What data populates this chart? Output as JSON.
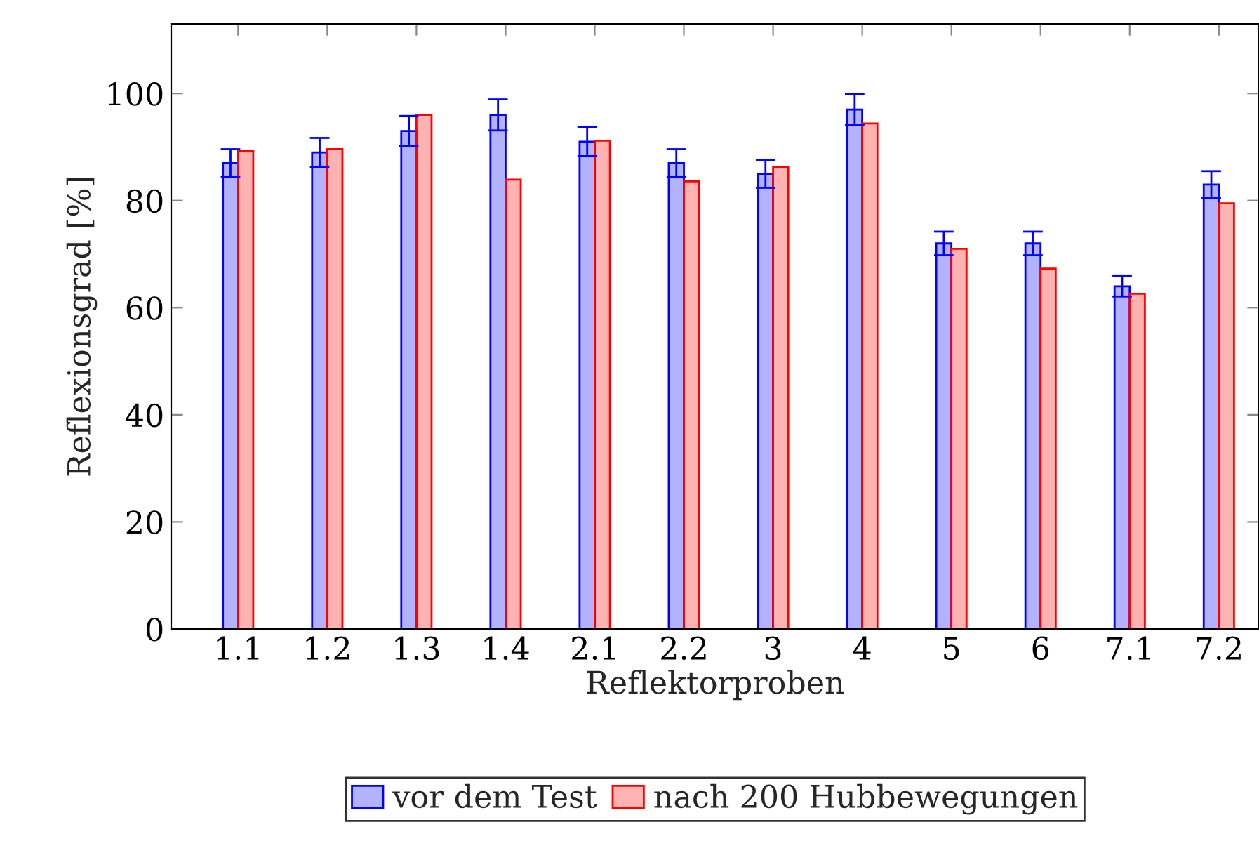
{
  "chart_data": {
    "type": "bar",
    "xlabel": "Reflektorproben",
    "ylabel": "Reflexionsgrad [%]",
    "categories": [
      "1.1",
      "1.2",
      "1.3",
      "1.4",
      "2.1",
      "2.2",
      "3",
      "4",
      "5",
      "6",
      "7.1",
      "7.2"
    ],
    "series": [
      {
        "name": "vor dem Test",
        "color": "#0000ff",
        "values": [
          87,
          89,
          93,
          96,
          91,
          87,
          85,
          97,
          72,
          72,
          64,
          83
        ],
        "errors": [
          2.6,
          2.7,
          2.8,
          2.9,
          2.7,
          2.6,
          2.6,
          2.9,
          2.2,
          2.2,
          1.9,
          2.5
        ]
      },
      {
        "name": "nach 200 Hubbewegungen",
        "color": "#ff0000",
        "values": [
          89.3,
          89.6,
          96.0,
          83.9,
          91.2,
          83.6,
          86.2,
          94.4,
          71.0,
          67.3,
          62.6,
          79.5
        ]
      }
    ],
    "ylim": [
      0,
      113
    ],
    "yticks": [
      0,
      20,
      40,
      60,
      80,
      100
    ],
    "grid": false,
    "legend": "bottom"
  }
}
